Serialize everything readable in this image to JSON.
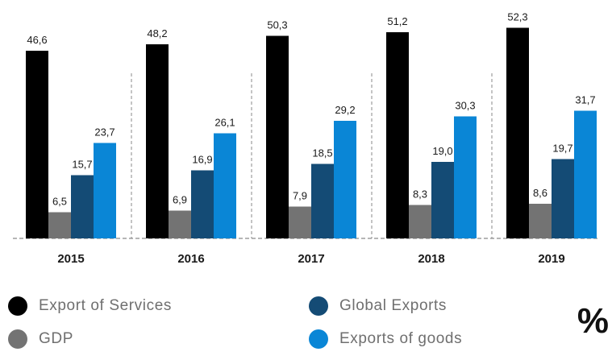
{
  "chart_data": {
    "type": "bar",
    "categories": [
      "2015",
      "2016",
      "2017",
      "2018",
      "2019"
    ],
    "series": [
      {
        "name": "Export of Services",
        "color": "#000000",
        "values": [
          46.6,
          48.2,
          50.3,
          51.2,
          52.3
        ]
      },
      {
        "name": "GDP",
        "color": "#737373",
        "values": [
          6.5,
          6.9,
          7.9,
          8.3,
          8.6
        ]
      },
      {
        "name": "Global Exports",
        "color": "#144b75",
        "values": [
          15.7,
          16.9,
          18.5,
          19.0,
          19.7
        ]
      },
      {
        "name": "Exports of goods",
        "color": "#0a86d6",
        "values": [
          23.7,
          26.1,
          29.2,
          30.3,
          31.7
        ]
      }
    ],
    "labels": [
      [
        "46,6",
        "6,5",
        "15,7",
        "23,7"
      ],
      [
        "48,2",
        "6,9",
        "16,9",
        "26,1"
      ],
      [
        "50,3",
        "7,9",
        "18,5",
        "29,2"
      ],
      [
        "51,2",
        "8,3",
        "19,0",
        "30,3"
      ],
      [
        "52,3",
        "8,6",
        "19,7",
        "31,7"
      ]
    ],
    "unit": "%",
    "ylim": [
      0,
      55
    ],
    "grid": false,
    "legend_position": "bottom"
  }
}
